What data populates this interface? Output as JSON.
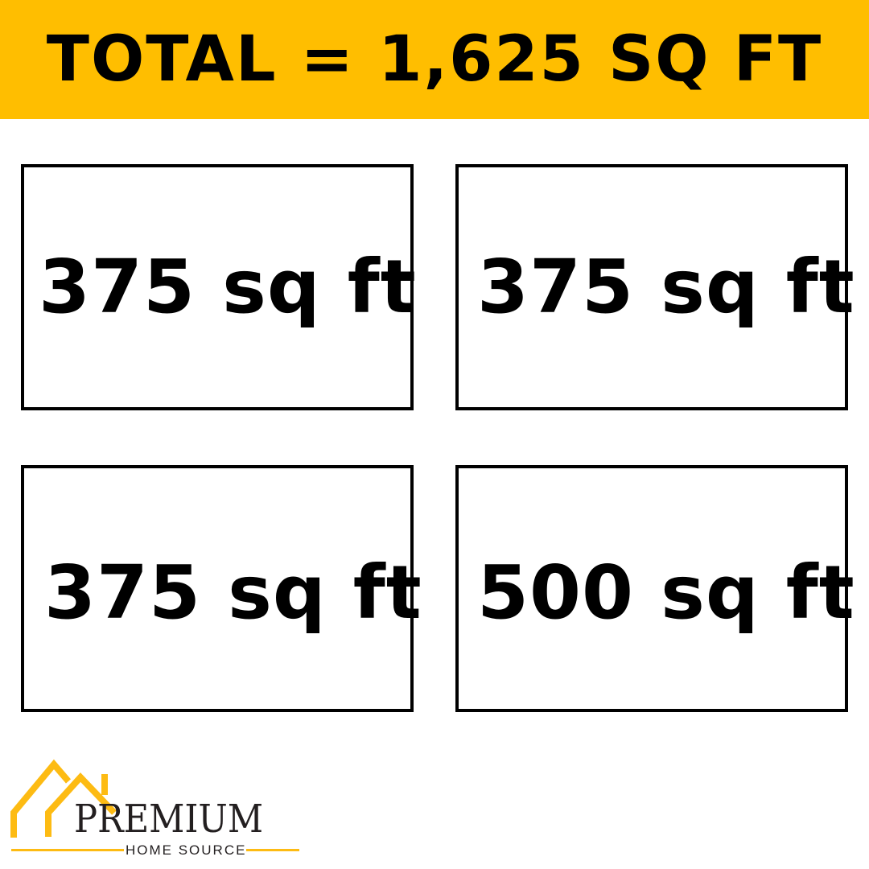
{
  "header": {
    "title": "TOTAL = 1,625 SQ FT"
  },
  "rooms": [
    {
      "label": "375 sq ft"
    },
    {
      "label": "375 sq ft"
    },
    {
      "label": "375 sq ft"
    },
    {
      "label": "500 sq ft"
    }
  ],
  "logo": {
    "name": "PREMIUM",
    "tagline": "HOME SOURCE"
  },
  "colors": {
    "accent": "#FFBE00",
    "text": "#000000"
  }
}
